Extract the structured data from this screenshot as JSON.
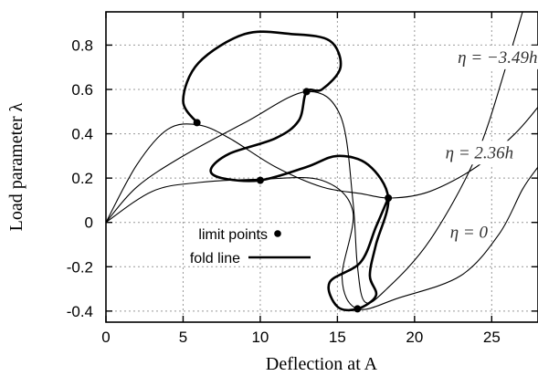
{
  "chart_data": {
    "type": "line",
    "xlabel": "Deflection at A",
    "ylabel": "Load parameter λ",
    "xlim": [
      0,
      28
    ],
    "ylim": [
      -0.45,
      0.95
    ],
    "x_ticks": [
      "0",
      "5",
      "10",
      "15",
      "20",
      "25"
    ],
    "y_ticks": [
      "0.8",
      "0.6",
      "0.4",
      "0.2",
      "0",
      "-0.2",
      "-0.4"
    ],
    "grid": true,
    "legend": {
      "position": "lower-left",
      "entries": [
        {
          "label": "limit points",
          "marker": "dot"
        },
        {
          "label": "fold line",
          "marker": "thick-line"
        }
      ]
    },
    "annotations": [
      {
        "text": "η = −3.49h",
        "x": 22.8,
        "y": 0.72
      },
      {
        "text": "η = 2.36h",
        "x": 22.0,
        "y": 0.29
      },
      {
        "text": "η = 0",
        "x": 22.3,
        "y": -0.07
      }
    ],
    "series": [
      {
        "name": "η = −3.49h",
        "points": [
          [
            0,
            0
          ],
          [
            2,
            0.16
          ],
          [
            5,
            0.3
          ],
          [
            9,
            0.45
          ],
          [
            13,
            0.59
          ],
          [
            15.2,
            0.48
          ],
          [
            16,
            0.1
          ],
          [
            16.3,
            -0.2
          ],
          [
            16.8,
            -0.36
          ],
          [
            18.2,
            -0.3
          ],
          [
            21,
            -0.08
          ],
          [
            24,
            0.3
          ],
          [
            26,
            0.72
          ],
          [
            27,
            0.95
          ]
        ]
      },
      {
        "name": "η = 2.36h",
        "points": [
          [
            0,
            0
          ],
          [
            2,
            0.26
          ],
          [
            4,
            0.42
          ],
          [
            6,
            0.44
          ],
          [
            8,
            0.38
          ],
          [
            11,
            0.25
          ],
          [
            14,
            0.16
          ],
          [
            16.5,
            0.13
          ],
          [
            18.5,
            0.11
          ],
          [
            21,
            0.14
          ],
          [
            24,
            0.25
          ],
          [
            26.5,
            0.4
          ],
          [
            28,
            0.52
          ]
        ]
      },
      {
        "name": "η = 0",
        "points": [
          [
            0,
            0
          ],
          [
            3,
            0.14
          ],
          [
            6,
            0.18
          ],
          [
            10,
            0.195
          ],
          [
            14,
            0.19
          ],
          [
            16,
            0.05
          ],
          [
            15.3,
            -0.25
          ],
          [
            16.3,
            -0.39
          ],
          [
            19,
            -0.34
          ],
          [
            23,
            -0.24
          ],
          [
            25.5,
            -0.05
          ],
          [
            27,
            0.15
          ],
          [
            28,
            0.25
          ]
        ]
      },
      {
        "name": "fold line",
        "points": [
          [
            5.9,
            0.45
          ],
          [
            5,
            0.55
          ],
          [
            6,
            0.72
          ],
          [
            9,
            0.85
          ],
          [
            12,
            0.85
          ],
          [
            14.5,
            0.82
          ],
          [
            15.2,
            0.7
          ],
          [
            14,
            0.6
          ],
          [
            13,
            0.59
          ],
          [
            12.5,
            0.46
          ],
          [
            11,
            0.38
          ],
          [
            8,
            0.31
          ],
          [
            6.8,
            0.24
          ],
          [
            7.5,
            0.2
          ],
          [
            10,
            0.19
          ],
          [
            13,
            0.25
          ],
          [
            15,
            0.3
          ],
          [
            17,
            0.26
          ],
          [
            18.3,
            0.11
          ],
          [
            17.5,
            -0.1
          ],
          [
            17.1,
            -0.24
          ],
          [
            17.5,
            -0.33
          ],
          [
            16.3,
            -0.39
          ],
          [
            15,
            -0.38
          ],
          [
            14.5,
            -0.27
          ],
          [
            16.5,
            -0.18
          ],
          [
            17.5,
            -0.02
          ],
          [
            18.3,
            0.11
          ]
        ]
      }
    ],
    "limit_points": [
      [
        5.9,
        0.45
      ],
      [
        13,
        0.59
      ],
      [
        10,
        0.19
      ],
      [
        18.3,
        0.11
      ],
      [
        16.3,
        -0.39
      ]
    ]
  }
}
